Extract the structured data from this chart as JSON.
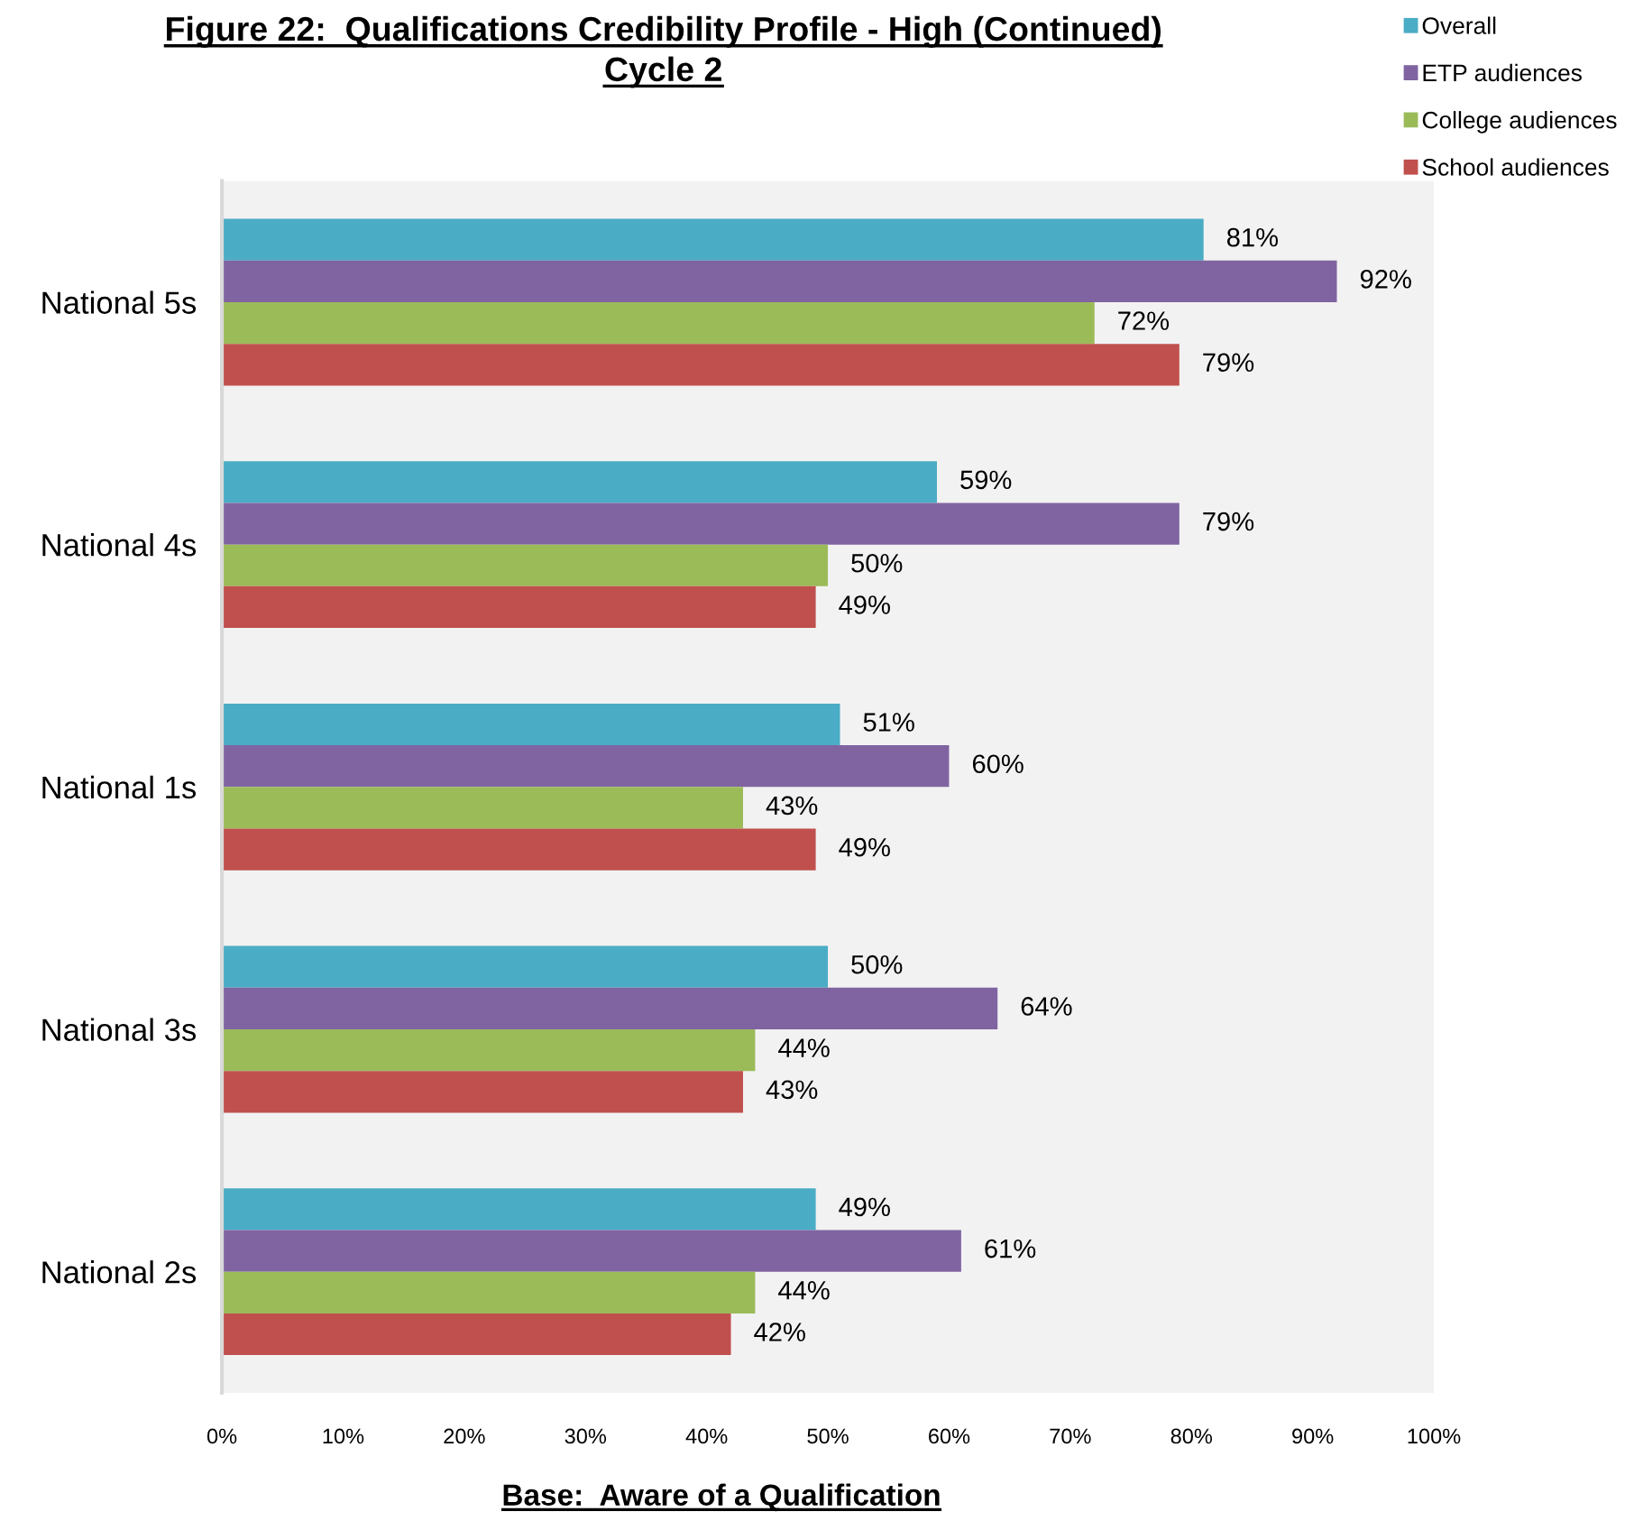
{
  "chart_data": {
    "type": "bar",
    "orientation": "horizontal",
    "title": "Figure 22:  Qualifications Credibility Profile - High (Continued)\nCycle 2",
    "categories": [
      "National 5s",
      "National 4s",
      "National 1s",
      "National 3s",
      "National 2s"
    ],
    "series": [
      {
        "name": "Overall",
        "color": "#4bacc6",
        "values": [
          81,
          59,
          51,
          50,
          49
        ],
        "value_labels": [
          "81%",
          "59%",
          "51%",
          "50%",
          "49%"
        ]
      },
      {
        "name": "ETP audiences",
        "color": "#8064a2",
        "values": [
          92,
          79,
          60,
          64,
          61
        ],
        "value_labels": [
          "92%",
          "79%",
          "60%",
          "64%",
          "61%"
        ]
      },
      {
        "name": "College audiences",
        "color": "#9bbb59",
        "values": [
          72,
          50,
          43,
          44,
          44
        ],
        "value_labels": [
          "72%",
          "50%",
          "43%",
          "44%",
          "44%"
        ]
      },
      {
        "name": "School audiences",
        "color": "#c0504d",
        "values": [
          79,
          49,
          49,
          43,
          42
        ],
        "value_labels": [
          "79%",
          "49%",
          "49%",
          "43%",
          "42%"
        ]
      }
    ],
    "xlim": [
      0,
      100
    ],
    "xticks": [
      {
        "value": 0,
        "label": "0%"
      },
      {
        "value": 10,
        "label": "10%"
      },
      {
        "value": 20,
        "label": "20%"
      },
      {
        "value": 30,
        "label": "30%"
      },
      {
        "value": 40,
        "label": "40%"
      },
      {
        "value": 50,
        "label": "50%"
      },
      {
        "value": 60,
        "label": "60%"
      },
      {
        "value": 70,
        "label": "70%"
      },
      {
        "value": 80,
        "label": "80%"
      },
      {
        "value": 90,
        "label": "90%"
      },
      {
        "value": 100,
        "label": "100%"
      }
    ],
    "grid": false,
    "legend": "top right",
    "annotations": [
      "Base:  Aware of a Qualification"
    ]
  }
}
